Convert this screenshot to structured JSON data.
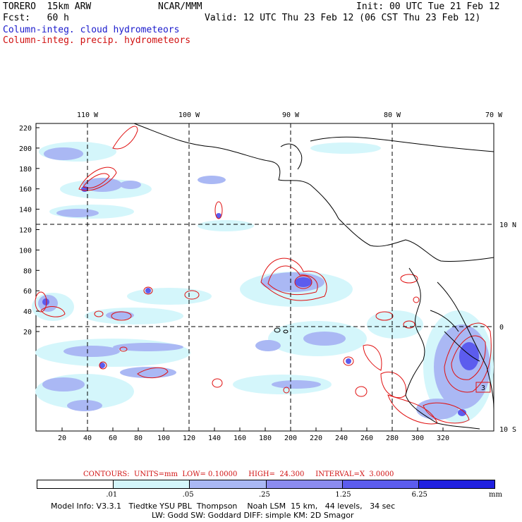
{
  "header": {
    "model": "TORERO  15km ARW",
    "center": "NCAR/MMM",
    "init": "Init: 00 UTC Tue 21 Feb 12",
    "fcst": "Fcst:   60 h",
    "valid": "Valid: 12 UTC Thu 23 Feb 12 (06 CST Thu 23 Feb 12)",
    "field_cloud": "Column-integ. cloud hydrometeors",
    "field_precip": "Column-integ. precip. hydrometeors"
  },
  "map": {
    "top_lon_labels": [
      "110 W",
      "100 W",
      "90 W",
      "80 W",
      "70 W"
    ],
    "right_lat_labels": [
      "10 N",
      "0",
      "10 S"
    ],
    "y_ticks": [
      "220",
      "200",
      "180",
      "160",
      "140",
      "120",
      "100",
      "80",
      "60",
      "40",
      "20"
    ],
    "x_ticks": [
      "20",
      "40",
      "60",
      "80",
      "100",
      "120",
      "140",
      "160",
      "180",
      "200",
      "220",
      "240",
      "260",
      "280",
      "300",
      "320"
    ],
    "box_label": "3"
  },
  "contours": {
    "text": "CONTOURS:  UNITS=mm  LOW= 0.10000     HIGH=  24.300     INTERVAL=X  3.0000"
  },
  "legend": {
    "colors": [
      "#ffffff",
      "#d4f6fb",
      "#aab8f4",
      "#8c8cf0",
      "#5c5cee",
      "#2020e0"
    ],
    "labels": [
      ".01",
      ".05",
      ".25",
      "1.25",
      "6.25"
    ],
    "unit": "mm"
  },
  "footer": {
    "line1": "Model Info: V3.3.1   Tiedtke YSU PBL  Thompson    Noah LSM  15 km,   44 levels,   34 sec",
    "line2": "LW: Godd SW: Goddard DIFF: simple KM: 2D Smagor"
  }
}
